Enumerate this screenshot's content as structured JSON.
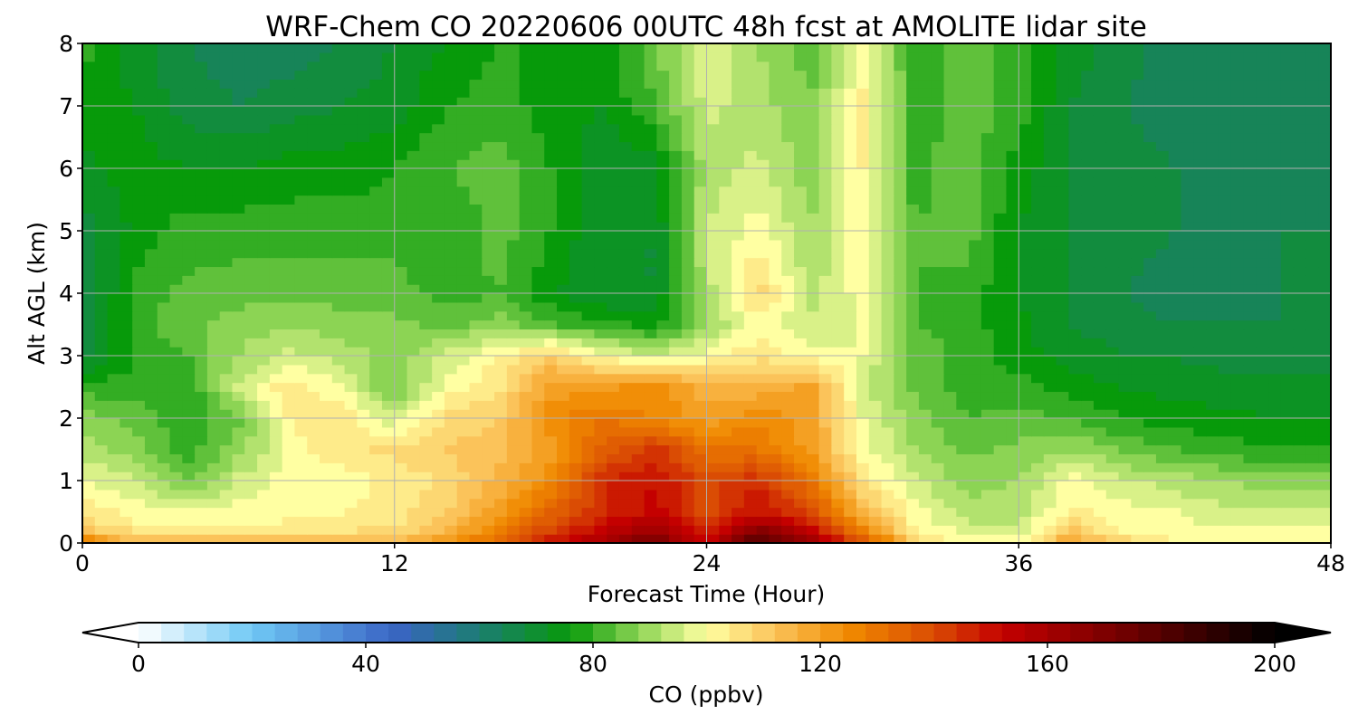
{
  "chart_data": {
    "type": "heatmap",
    "title": "WRF-Chem CO  20220606 00UTC 48h fcst at AMOLITE lidar site",
    "xlabel": "Forecast Time (Hour)",
    "ylabel": "Alt AGL (km)",
    "xlim": [
      0,
      48
    ],
    "ylim": [
      0,
      8
    ],
    "xticks": [
      "0",
      "12",
      "24",
      "36",
      "48"
    ],
    "yticks": [
      "0",
      "1",
      "2",
      "3",
      "4",
      "5",
      "6",
      "7",
      "8"
    ],
    "grid": true,
    "colorbar": {
      "label": "CO  (ppbv)",
      "range": [
        0,
        200
      ],
      "ticks": [
        "0",
        "40",
        "80",
        "120",
        "160",
        "200"
      ],
      "extend": "both",
      "stops": [
        {
          "v": 0,
          "c": "#ffffff"
        },
        {
          "v": 20,
          "c": "#6fc8f5"
        },
        {
          "v": 45,
          "c": "#3a64c4"
        },
        {
          "v": 60,
          "c": "#1c7d72"
        },
        {
          "v": 76,
          "c": "#079a0a"
        },
        {
          "v": 88,
          "c": "#8cd454"
        },
        {
          "v": 100,
          "c": "#ffffa2"
        },
        {
          "v": 112,
          "c": "#fbc35a"
        },
        {
          "v": 125,
          "c": "#f08a00"
        },
        {
          "v": 140,
          "c": "#da4c04"
        },
        {
          "v": 152,
          "c": "#c40000"
        },
        {
          "v": 175,
          "c": "#6b0000"
        },
        {
          "v": 200,
          "c": "#000000"
        }
      ]
    },
    "x": [
      0,
      2,
      4,
      6,
      8,
      10,
      12,
      14,
      16,
      18,
      20,
      22,
      24,
      26,
      28,
      30,
      32,
      34,
      36,
      38,
      40,
      42,
      44,
      46,
      48
    ],
    "y": [
      0,
      0.25,
      0.5,
      1,
      1.5,
      2,
      2.5,
      3,
      3.5,
      4,
      5,
      6,
      7,
      8
    ],
    "z": [
      [
        130,
        115,
        115,
        115,
        113,
        113,
        115,
        122,
        135,
        150,
        160,
        175,
        150,
        185,
        165,
        140,
        110,
        100,
        100,
        120,
        110,
        103,
        100,
        100,
        100
      ],
      [
        110,
        103,
        101,
        102,
        103,
        104,
        106,
        113,
        126,
        140,
        152,
        160,
        145,
        165,
        150,
        125,
        102,
        95,
        95,
        110,
        100,
        99,
        98,
        98,
        98
      ],
      [
        105,
        100,
        98,
        100,
        101,
        102,
        104,
        110,
        120,
        135,
        145,
        152,
        140,
        150,
        140,
        115,
        100,
        92,
        92,
        103,
        100,
        98,
        95,
        95,
        95
      ],
      [
        98,
        95,
        85,
        95,
        100,
        100,
        103,
        107,
        115,
        125,
        145,
        150,
        140,
        145,
        130,
        105,
        95,
        88,
        90,
        100,
        95,
        92,
        90,
        88,
        88
      ],
      [
        92,
        88,
        80,
        88,
        100,
        105,
        107,
        110,
        113,
        120,
        135,
        145,
        130,
        130,
        120,
        100,
        90,
        85,
        87,
        90,
        85,
        82,
        80,
        78,
        78
      ],
      [
        88,
        85,
        78,
        85,
        103,
        105,
        95,
        107,
        110,
        125,
        130,
        125,
        120,
        125,
        120,
        98,
        88,
        82,
        83,
        82,
        78,
        76,
        75,
        74,
        74
      ],
      [
        80,
        80,
        78,
        95,
        105,
        98,
        85,
        100,
        105,
        120,
        120,
        125,
        115,
        115,
        120,
        95,
        85,
        80,
        80,
        76,
        74,
        72,
        72,
        72,
        72
      ],
      [
        68,
        78,
        82,
        90,
        95,
        92,
        88,
        95,
        102,
        110,
        100,
        95,
        100,
        105,
        100,
        98,
        85,
        80,
        76,
        72,
        70,
        70,
        68,
        68,
        68
      ],
      [
        65,
        80,
        85,
        88,
        90,
        88,
        87,
        85,
        88,
        82,
        80,
        76,
        90,
        100,
        95,
        98,
        82,
        80,
        75,
        70,
        68,
        66,
        66,
        66,
        66
      ],
      [
        65,
        80,
        83,
        84,
        85,
        84,
        84,
        80,
        82,
        75,
        70,
        70,
        92,
        108,
        92,
        100,
        82,
        80,
        74,
        70,
        66,
        64,
        64,
        66,
        66
      ],
      [
        68,
        75,
        80,
        80,
        80,
        80,
        80,
        78,
        84,
        78,
        70,
        70,
        94,
        100,
        90,
        102,
        82,
        84,
        74,
        70,
        68,
        66,
        66,
        66,
        66
      ],
      [
        73,
        76,
        74,
        74,
        76,
        76,
        78,
        82,
        84,
        78,
        70,
        72,
        92,
        95,
        88,
        102,
        80,
        85,
        76,
        70,
        68,
        66,
        64,
        64,
        66
      ],
      [
        76,
        74,
        68,
        66,
        68,
        70,
        72,
        78,
        80,
        76,
        74,
        82,
        95,
        92,
        86,
        103,
        80,
        84,
        80,
        70,
        66,
        64,
        64,
        64,
        64
      ],
      [
        80,
        72,
        66,
        64,
        64,
        66,
        70,
        74,
        78,
        78,
        76,
        85,
        98,
        90,
        84,
        100,
        80,
        84,
        80,
        72,
        68,
        64,
        62,
        62,
        64
      ]
    ]
  }
}
